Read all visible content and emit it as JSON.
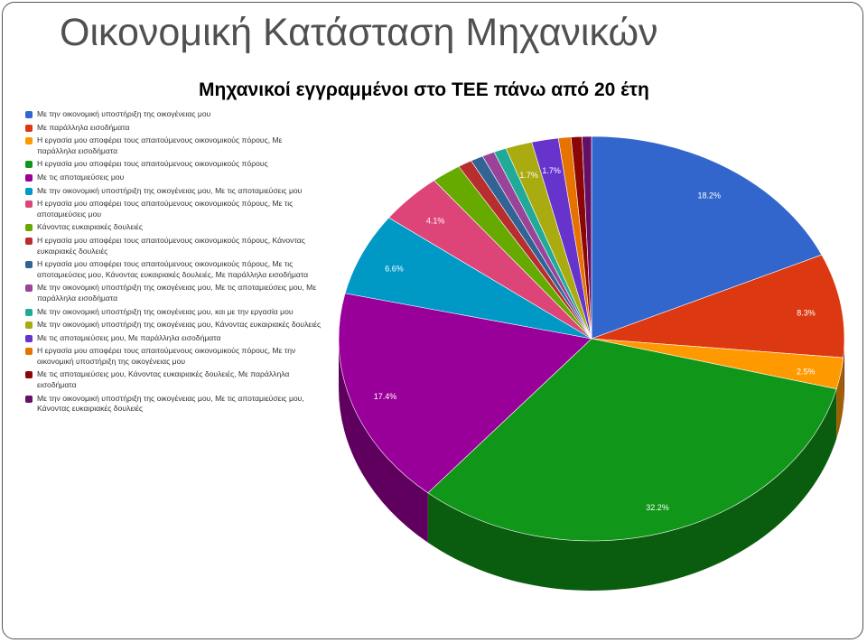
{
  "title": "Οικονομική Κατάσταση Μηχανικών",
  "chart_data": {
    "type": "pie3d",
    "title": "Μηχανικοί εγγραμμένοι στο ΤΕΕ πάνω από 20 έτη",
    "categories": [
      "Με την οικονομική υποστήριξη της οικογένειας μου",
      "Με παράλληλα εισοδήματα",
      "Η εργασία μου αποφέρει τους απαιτούμενους οικονομικούς πόρους, Με παράλληλα εισοδήματα",
      "Η εργασία μου αποφέρει τους απαιτούμενους οικονομικούς πόρους",
      "Με τις αποταμιεύσεις μου",
      "Με την οικονομική υποστήριξη της οικογένειας μου, Με τις αποταμιεύσεις μου",
      "Η εργασία μου αποφέρει τους απαιτούμενους οικονομικούς πόρους, Με τις αποταμιεύσεις μου",
      "Κάνοντας ευκαιριακές δουλειές",
      "Η εργασία μου αποφέρει τους απαιτούμενους οικονομικούς πόρους, Κάνοντας ευκαιριακές δουλειές",
      "Η εργασία μου αποφέρει τους απαιτούμενους οικονομικούς πόρους, Με τις αποταμιεύσεις μου, Κάνοντας ευκαιριακές δουλειές, Με παράλληλα εισοδήματα",
      "Με την οικονομική υποστήριξη της οικογένειας μου, Με τις αποταμιεύσεις μου, Με παράλληλα εισοδήματα",
      "Με την οικονομική υποστήριξη της οικογένειας μου, και με την εργασία μου",
      "Με την οικονομική υποστήριξη της οικογένειας μου, Κάνοντας ευκαιριακές δουλειές",
      "Με τις αποταμιεύσεις μου, Με παράλληλα εισοδήματα",
      "Η εργασία μου αποφέρει τους απαιτούμενους οικονομικούς πόρους, Με την οικονομική υποστήριξη της οικογένειας μου",
      "Με τις αποταμιεύσεις μου, Κάνοντας ευκαιριακές δουλειές, Με παράλληλα εισοδήματα",
      "Με την οικονομική υποστήριξη της οικογένειας μου, Με τις αποταμιεύσεις μου, Κάνοντας ευκαιριακές δουλειές"
    ],
    "values": [
      18.2,
      8.3,
      2.5,
      32.2,
      17.4,
      6.6,
      4.1,
      1.9,
      0.9,
      0.8,
      0.8,
      0.8,
      1.7,
      1.7,
      0.8,
      0.7,
      0.6
    ],
    "value_labels": [
      "18.2%",
      "8.3%",
      "2.5%",
      "32.2%",
      "17.4%",
      "6.6%",
      "4.1%",
      null,
      null,
      null,
      null,
      null,
      "1.7%",
      "1.7%",
      null,
      null,
      null
    ],
    "colors": [
      "#3366cc",
      "#dc3912",
      "#ff9900",
      "#109618",
      "#990099",
      "#0099c6",
      "#dd4477",
      "#66aa00",
      "#b82e2e",
      "#316395",
      "#994499",
      "#22aa99",
      "#aaaa11",
      "#6633cc",
      "#e67300",
      "#8b0707",
      "#651067"
    ]
  }
}
